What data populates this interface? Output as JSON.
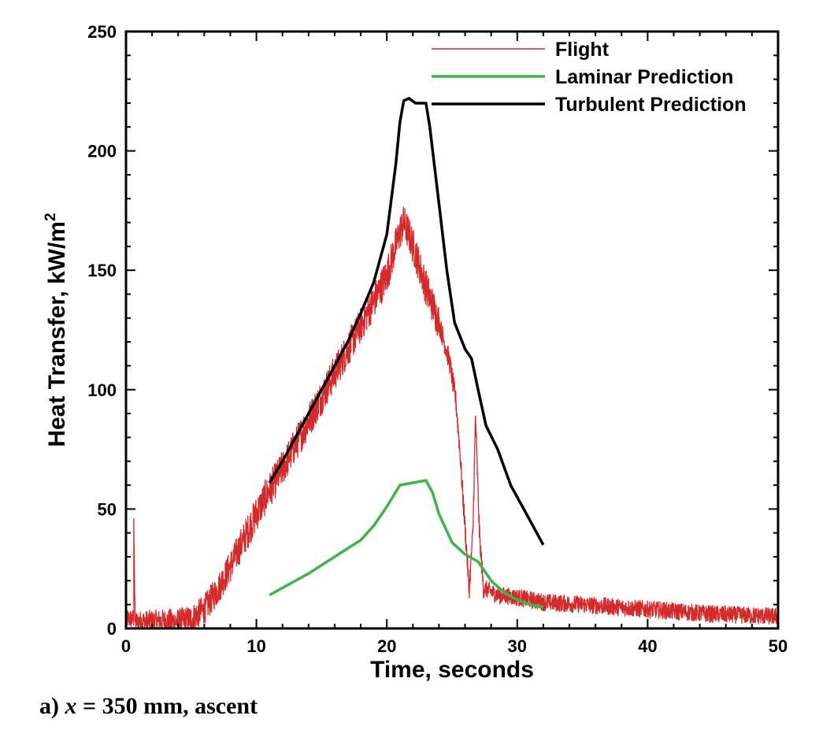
{
  "caption": {
    "prefix": "a) ",
    "variable": "x",
    "suffix": " = 350 mm, ascent"
  },
  "colors": {
    "flight": "#d42a2a",
    "laminar": "#3db54a",
    "turbulent": "#000000"
  },
  "chart_data": {
    "type": "line",
    "title": "",
    "xlabel": "Time, seconds",
    "ylabel": "Heat Transfer, kW/m",
    "ylabel_superscript": "2",
    "xlim": [
      0,
      50
    ],
    "ylim": [
      0,
      250
    ],
    "xticks": [
      0,
      10,
      20,
      30,
      40,
      50
    ],
    "xtick_labels": [
      "0",
      "10",
      "20",
      "30",
      "40",
      "50"
    ],
    "yticks": [
      0,
      50,
      100,
      150,
      200,
      250
    ],
    "ytick_labels": [
      "0",
      "50",
      "100",
      "150",
      "200",
      "250"
    ],
    "legend_position": "top-right",
    "grid": false,
    "series": [
      {
        "name": "Flight",
        "noisy": true,
        "points": [
          [
            0,
            4
          ],
          [
            0.6,
            4
          ],
          [
            0.6,
            46
          ],
          [
            0.7,
            3
          ],
          [
            2,
            3
          ],
          [
            4,
            3
          ],
          [
            5,
            4
          ],
          [
            6,
            8
          ],
          [
            7,
            16
          ],
          [
            8,
            26
          ],
          [
            9,
            37
          ],
          [
            10,
            48
          ],
          [
            11,
            58
          ],
          [
            12,
            67
          ],
          [
            13,
            77
          ],
          [
            14,
            87
          ],
          [
            15,
            97
          ],
          [
            16,
            107
          ],
          [
            17,
            117
          ],
          [
            18,
            127
          ],
          [
            19,
            137
          ],
          [
            20,
            148
          ],
          [
            20.5,
            157
          ],
          [
            21,
            166
          ],
          [
            21.3,
            170
          ],
          [
            21.7,
            165
          ],
          [
            22.2,
            157
          ],
          [
            23,
            143
          ],
          [
            24,
            128
          ],
          [
            24.8,
            112
          ],
          [
            25.3,
            95
          ],
          [
            25.6,
            75
          ],
          [
            25.8,
            58
          ],
          [
            26.2,
            26
          ],
          [
            26.3,
            15
          ],
          [
            26.6,
            40
          ],
          [
            26.8,
            89
          ],
          [
            27.1,
            40
          ],
          [
            27.4,
            17
          ],
          [
            28.5,
            14
          ],
          [
            30,
            13
          ],
          [
            32,
            11
          ],
          [
            35,
            10
          ],
          [
            40,
            8
          ],
          [
            45,
            6
          ],
          [
            50,
            5
          ]
        ]
      },
      {
        "name": "Laminar Prediction",
        "points": [
          [
            11,
            14
          ],
          [
            12,
            17
          ],
          [
            14,
            23
          ],
          [
            16,
            30
          ],
          [
            18,
            37
          ],
          [
            19,
            43
          ],
          [
            20,
            51
          ],
          [
            21,
            60
          ],
          [
            22,
            61
          ],
          [
            23,
            62
          ],
          [
            23.5,
            57
          ],
          [
            24,
            48
          ],
          [
            25,
            36
          ],
          [
            26,
            31
          ],
          [
            27,
            28
          ],
          [
            28,
            20
          ],
          [
            29,
            15
          ],
          [
            30,
            12
          ],
          [
            31,
            10
          ],
          [
            32,
            9
          ]
        ]
      },
      {
        "name": "Turbulent Prediction",
        "points": [
          [
            11,
            61
          ],
          [
            12,
            70
          ],
          [
            13,
            80
          ],
          [
            14,
            90
          ],
          [
            15,
            100
          ],
          [
            16,
            110
          ],
          [
            17,
            120
          ],
          [
            18,
            132
          ],
          [
            19,
            145
          ],
          [
            20,
            165
          ],
          [
            20.7,
            195
          ],
          [
            21,
            212
          ],
          [
            21.3,
            221
          ],
          [
            21.7,
            222
          ],
          [
            22.2,
            220
          ],
          [
            23,
            220
          ],
          [
            23.3,
            210
          ],
          [
            24,
            178
          ],
          [
            24.6,
            150
          ],
          [
            25.2,
            128
          ],
          [
            26,
            117
          ],
          [
            26.5,
            113
          ],
          [
            27,
            100
          ],
          [
            27.6,
            85
          ],
          [
            28.5,
            75
          ],
          [
            29.5,
            60
          ],
          [
            30.5,
            50
          ],
          [
            31.5,
            40
          ],
          [
            32,
            35
          ]
        ]
      }
    ]
  }
}
